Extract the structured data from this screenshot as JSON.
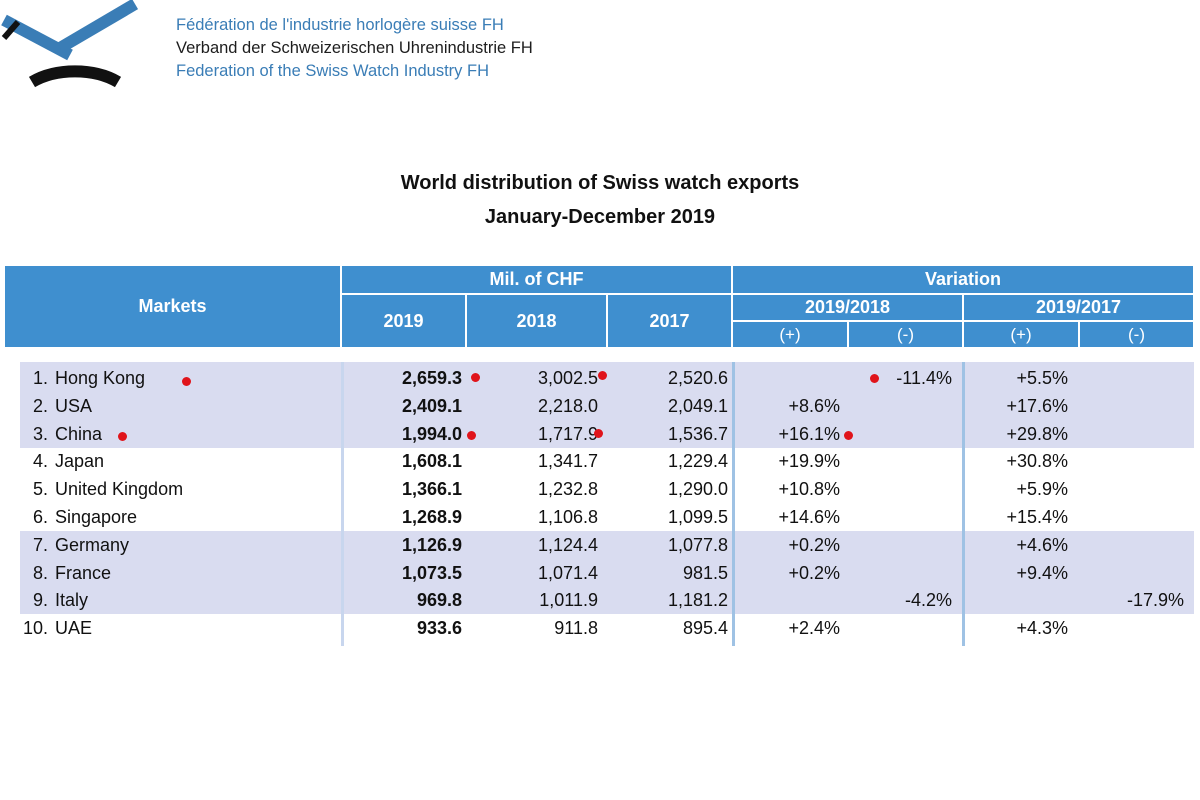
{
  "organization": {
    "name_fr": "Fédération de l'industrie horlogère suisse FH",
    "name_de": "Verband der Schweizerischen Uhrenindustrie FH",
    "name_en": "Federation of the Swiss Watch Industry FH"
  },
  "title": {
    "line1": "World distribution of Swiss watch exports",
    "line2": "January-December 2019"
  },
  "table": {
    "headers": {
      "markets": "Markets",
      "mil_chf": "Mil. of CHF",
      "variation": "Variation",
      "y2019": "2019",
      "y2018": "2018",
      "y2017": "2017",
      "var_2019_2018": "2019/2018",
      "var_2019_2017": "2019/2017",
      "plus": "(+)",
      "minus": "(-)"
    },
    "rows": [
      {
        "rank": "1.",
        "market": "Hong Kong",
        "v2019": "2,659.3",
        "v2018": "3,002.5",
        "v2017": "2,520.6",
        "var1918_plus": "",
        "var1918_minus": "-11.4%",
        "var1917_plus": "+5.5%",
        "var1917_minus": ""
      },
      {
        "rank": "2.",
        "market": "USA",
        "v2019": "2,409.1",
        "v2018": "2,218.0",
        "v2017": "2,049.1",
        "var1918_plus": "+8.6%",
        "var1918_minus": "",
        "var1917_plus": "+17.6%",
        "var1917_minus": ""
      },
      {
        "rank": "3.",
        "market": "China",
        "v2019": "1,994.0",
        "v2018": "1,717.9",
        "v2017": "1,536.7",
        "var1918_plus": "+16.1%",
        "var1918_minus": "",
        "var1917_plus": "+29.8%",
        "var1917_minus": ""
      },
      {
        "rank": "4.",
        "market": "Japan",
        "v2019": "1,608.1",
        "v2018": "1,341.7",
        "v2017": "1,229.4",
        "var1918_plus": "+19.9%",
        "var1918_minus": "",
        "var1917_plus": "+30.8%",
        "var1917_minus": ""
      },
      {
        "rank": "5.",
        "market": "United Kingdom",
        "v2019": "1,366.1",
        "v2018": "1,232.8",
        "v2017": "1,290.0",
        "var1918_plus": "+10.8%",
        "var1918_minus": "",
        "var1917_plus": "+5.9%",
        "var1917_minus": ""
      },
      {
        "rank": "6.",
        "market": "Singapore",
        "v2019": "1,268.9",
        "v2018": "1,106.8",
        "v2017": "1,099.5",
        "var1918_plus": "+14.6%",
        "var1918_minus": "",
        "var1917_plus": "+15.4%",
        "var1917_minus": ""
      },
      {
        "rank": "7.",
        "market": "Germany",
        "v2019": "1,126.9",
        "v2018": "1,124.4",
        "v2017": "1,077.8",
        "var1918_plus": "+0.2%",
        "var1918_minus": "",
        "var1917_plus": "+4.6%",
        "var1917_minus": ""
      },
      {
        "rank": "8.",
        "market": "France",
        "v2019": "1,073.5",
        "v2018": "1,071.4",
        "v2017": "981.5",
        "var1918_plus": "+0.2%",
        "var1918_minus": "",
        "var1917_plus": "+9.4%",
        "var1917_minus": ""
      },
      {
        "rank": "9.",
        "market": "Italy",
        "v2019": "969.8",
        "v2018": "1,011.9",
        "v2017": "1,181.2",
        "var1918_plus": "",
        "var1918_minus": "-4.2%",
        "var1917_plus": "",
        "var1917_minus": "-17.9%"
      },
      {
        "rank": "10.",
        "market": "UAE",
        "v2019": "933.6",
        "v2018": "911.8",
        "v2017": "895.4",
        "var1918_plus": "+2.4%",
        "var1918_minus": "",
        "var1917_plus": "+4.3%",
        "var1917_minus": ""
      }
    ]
  },
  "colors": {
    "header_bg": "#3f8fcf",
    "band_bg": "#d9dcf0",
    "marker": "#e0141b",
    "logo_blue": "#3a7db6"
  }
}
